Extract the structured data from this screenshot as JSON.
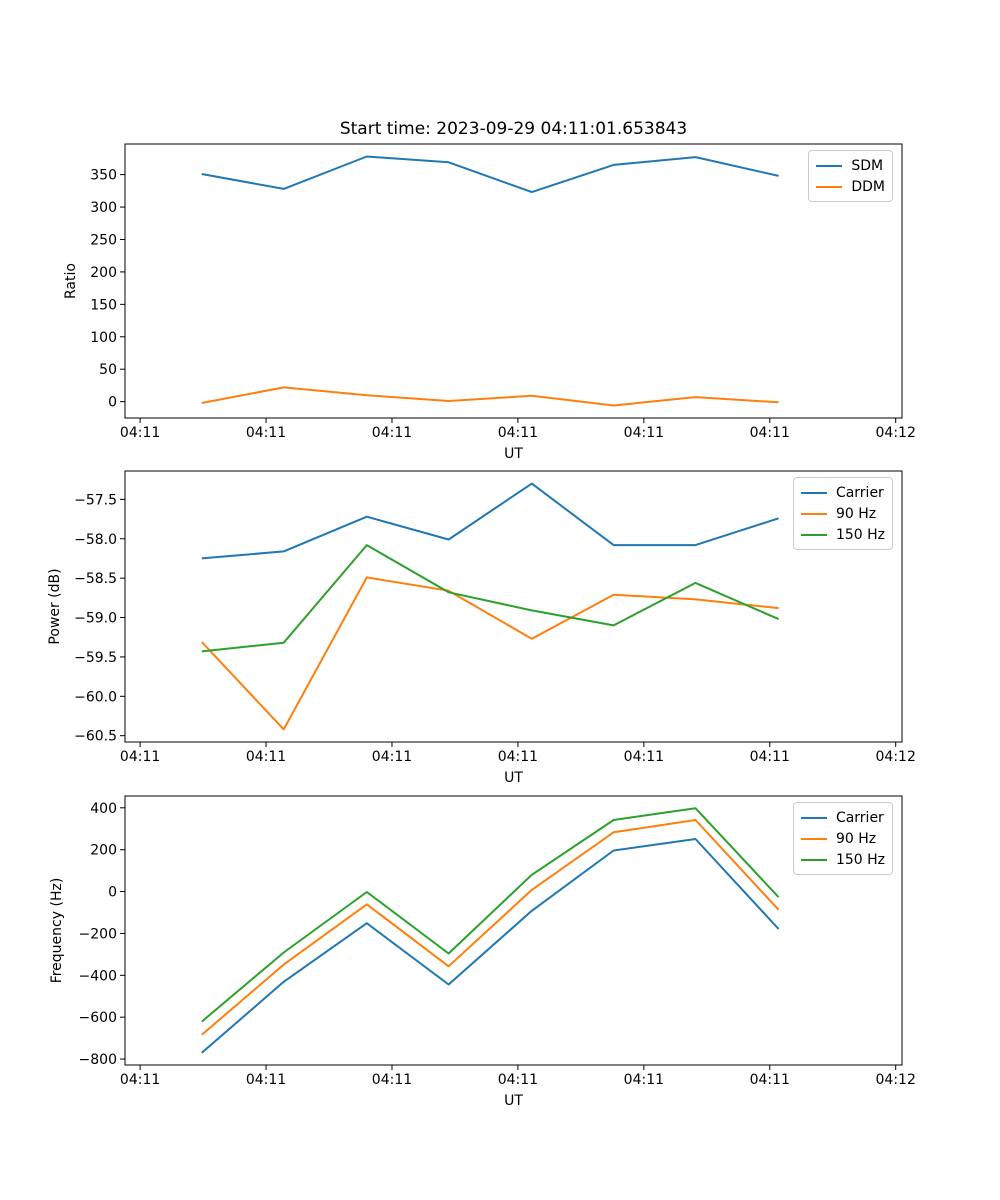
{
  "title": "Start time: 2023-09-29 04:11:01.653843",
  "colors": {
    "blue": "#1f77b4",
    "orange": "#ff7f0e",
    "green": "#2ca02c"
  },
  "chart_data": [
    {
      "type": "line",
      "name": "ratio",
      "xlabel": "UT",
      "ylabel": "Ratio",
      "grid": false,
      "legend_position": "upper right",
      "x_seconds": [
        4.9,
        11.4,
        18.0,
        24.5,
        31.1,
        37.6,
        44.1,
        50.7
      ],
      "xlim": [
        -1.2,
        60.5
      ],
      "ylim": [
        -25.2,
        397.2
      ],
      "xticks": {
        "values": [
          0,
          10,
          20,
          30,
          40,
          50,
          60
        ],
        "labels": [
          "04:11",
          "04:11",
          "04:11",
          "04:11",
          "04:11",
          "04:11",
          "04:12"
        ]
      },
      "yticks": {
        "values": [
          0,
          50,
          100,
          150,
          200,
          250,
          300,
          350
        ],
        "labels": [
          "0",
          "50",
          "100",
          "150",
          "200",
          "250",
          "300",
          "350"
        ]
      },
      "series": [
        {
          "name": "SDM",
          "color": "blue",
          "values": [
            351,
            328,
            378,
            369,
            323,
            365,
            377,
            348
          ]
        },
        {
          "name": "DDM",
          "color": "orange",
          "values": [
            -2,
            22,
            10,
            1,
            9,
            -6,
            7,
            -1
          ]
        }
      ]
    },
    {
      "type": "line",
      "name": "power",
      "xlabel": "UT",
      "ylabel": "Power (dB)",
      "grid": false,
      "legend_position": "upper right",
      "x_seconds": [
        4.9,
        11.4,
        18.0,
        24.5,
        31.1,
        37.6,
        44.1,
        50.7
      ],
      "xlim": [
        -1.2,
        60.5
      ],
      "ylim": [
        -60.58,
        -57.14
      ],
      "xticks": {
        "values": [
          0,
          10,
          20,
          30,
          40,
          50,
          60
        ],
        "labels": [
          "04:11",
          "04:11",
          "04:11",
          "04:11",
          "04:11",
          "04:11",
          "04:12"
        ]
      },
      "yticks": {
        "values": [
          -60.5,
          -60.0,
          -59.5,
          -59.0,
          -58.5,
          -58.0,
          -57.5
        ],
        "labels": [
          "−60.5",
          "−60.0",
          "−59.5",
          "−59.0",
          "−58.5",
          "−58.0",
          "−57.5"
        ]
      },
      "series": [
        {
          "name": "Carrier",
          "color": "blue",
          "values": [
            -58.25,
            -58.16,
            -57.72,
            -58.01,
            -57.3,
            -58.08,
            -58.08,
            -57.74
          ]
        },
        {
          "name": "90 Hz",
          "color": "orange",
          "values": [
            -59.31,
            -60.42,
            -58.49,
            -58.66,
            -59.27,
            -58.71,
            -58.77,
            -58.88
          ]
        },
        {
          "name": "150 Hz",
          "color": "green",
          "values": [
            -59.43,
            -59.32,
            -58.08,
            -58.68,
            -58.91,
            -59.1,
            -58.56,
            -59.02
          ]
        }
      ]
    },
    {
      "type": "line",
      "name": "frequency",
      "xlabel": "UT",
      "ylabel": "Frequency (Hz)",
      "grid": false,
      "legend_position": "upper right",
      "x_seconds": [
        4.9,
        11.4,
        18.0,
        24.5,
        31.1,
        37.6,
        44.1,
        50.7
      ],
      "xlim": [
        -1.2,
        60.5
      ],
      "ylim": [
        -828.4,
        456.4
      ],
      "xticks": {
        "values": [
          0,
          10,
          20,
          30,
          40,
          50,
          60
        ],
        "labels": [
          "04:11",
          "04:11",
          "04:11",
          "04:11",
          "04:11",
          "04:11",
          "04:12"
        ]
      },
      "yticks": {
        "values": [
          -800,
          -600,
          -400,
          -200,
          0,
          200,
          400
        ],
        "labels": [
          "−800",
          "−600",
          "−400",
          "−200",
          "0",
          "200",
          "400"
        ]
      },
      "series": [
        {
          "name": "Carrier",
          "color": "blue",
          "values": [
            -770,
            -431,
            -151,
            -444,
            -92,
            196,
            251,
            -179
          ]
        },
        {
          "name": "90 Hz",
          "color": "orange",
          "values": [
            -684,
            -349,
            -61,
            -357,
            8,
            283,
            342,
            -87
          ]
        },
        {
          "name": "150 Hz",
          "color": "green",
          "values": [
            -621,
            -291,
            -2,
            -296,
            80,
            342,
            398,
            -27
          ]
        }
      ]
    }
  ]
}
